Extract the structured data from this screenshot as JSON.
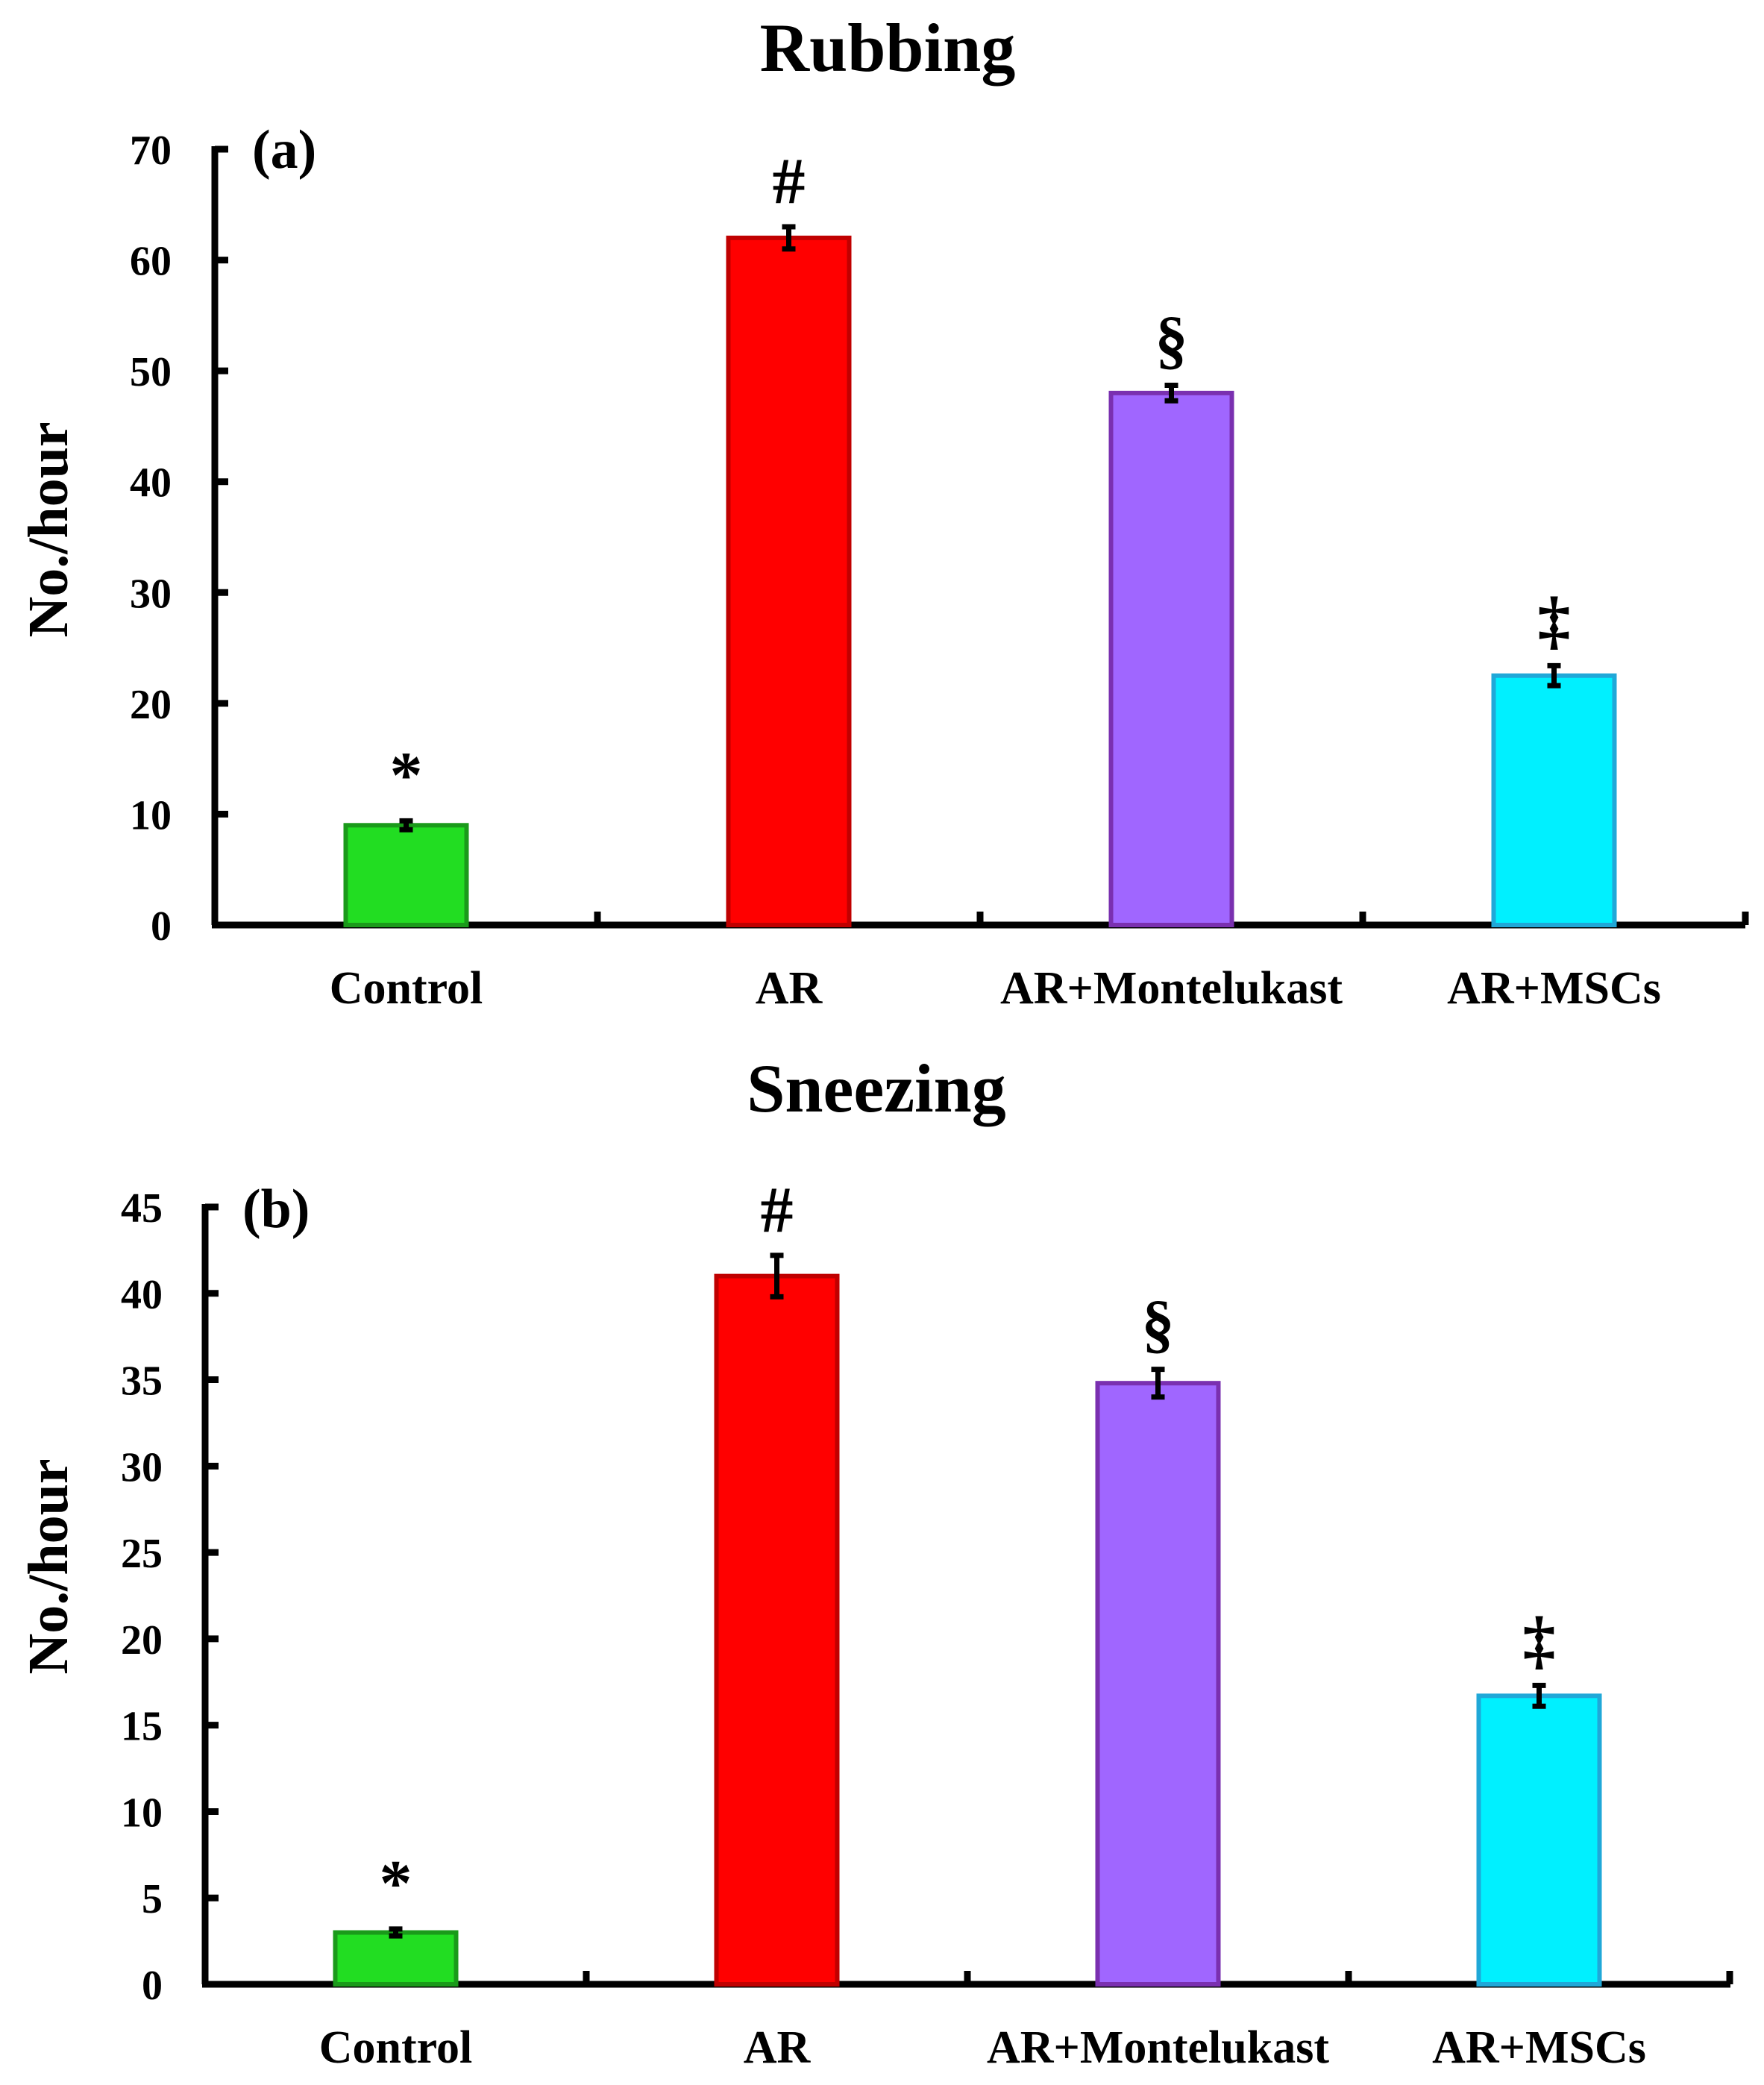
{
  "chart_data": [
    {
      "type": "bar",
      "title": "Rubbing",
      "panel_label": "(a)",
      "ylabel": "No./hour",
      "xlabel": "",
      "ylim": [
        0,
        70
      ],
      "yticks": [
        0,
        10,
        20,
        30,
        40,
        50,
        60,
        70
      ],
      "categories": [
        "Control",
        "AR",
        "AR+Montelukast",
        "AR+MSCs"
      ],
      "values": [
        9,
        62,
        48,
        22.5
      ],
      "errors": [
        0.4,
        1.0,
        0.7,
        0.9
      ],
      "significance": [
        "*",
        "#",
        "§",
        "‡"
      ],
      "colors": [
        "#22dd22",
        "#ff0000",
        "#a066ff",
        "#00f0ff"
      ],
      "edge_colors": [
        "#1a9a1a",
        "#c00000",
        "#7a30b0",
        "#20a8d8"
      ]
    },
    {
      "type": "bar",
      "title": "Sneezing",
      "panel_label": "(b)",
      "ylabel": "No./hour",
      "xlabel": "",
      "ylim": [
        0,
        45
      ],
      "yticks": [
        0,
        5,
        10,
        15,
        20,
        25,
        30,
        35,
        40,
        45
      ],
      "categories": [
        "Control",
        "AR",
        "AR+Montelukast",
        "AR+MSCs"
      ],
      "values": [
        3,
        41,
        34.8,
        16.7
      ],
      "errors": [
        0.2,
        1.2,
        0.8,
        0.6
      ],
      "significance": [
        "*",
        "#",
        "§",
        "‡"
      ],
      "colors": [
        "#22dd22",
        "#ff0000",
        "#a066ff",
        "#00f0ff"
      ],
      "edge_colors": [
        "#1a9a1a",
        "#c00000",
        "#7a30b0",
        "#20a8d8"
      ]
    }
  ]
}
